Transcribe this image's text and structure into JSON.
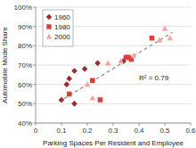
{
  "chart_data": {
    "type": "scatter",
    "x_label": "Parking Spaces Per Resident and Employee",
    "y_label": "Automobile Mode Share",
    "xlim": [
      0,
      0.6
    ],
    "xticks": [
      0,
      0.1,
      0.2,
      0.3,
      0.4,
      0.5,
      0.6
    ],
    "ylim": [
      40,
      100
    ],
    "yticks": [
      {
        "value": 40,
        "label": "40%"
      },
      {
        "value": 50,
        "label": "50%"
      },
      {
        "value": 60,
        "label": "60%"
      },
      {
        "value": 70,
        "label": "70%"
      },
      {
        "value": 80,
        "label": "80%"
      },
      {
        "value": 90,
        "label": "90%"
      },
      {
        "value": 100,
        "label": "100%"
      }
    ],
    "grid": true,
    "legend": "upper left",
    "series": [
      {
        "name": "1960",
        "color": "#9e2a2b",
        "marker": "diamond",
        "x": [
          0.1,
          0.12,
          0.13,
          0.15,
          0.19,
          0.15,
          0.24,
          0.34
        ],
        "values": [
          52,
          60,
          63,
          67,
          68,
          50,
          71,
          72
        ]
      },
      {
        "name": "1980",
        "color": "#d9413a",
        "marker": "square",
        "x": [
          0.22,
          0.25,
          0.35,
          0.36,
          0.37,
          0.45,
          0.13
        ],
        "values": [
          62,
          52,
          74,
          74,
          73,
          84,
          55
        ]
      },
      {
        "name": "2000",
        "color": "#f2a3a0",
        "marker": "triangle",
        "x": [
          0.22,
          0.2,
          0.28,
          0.33,
          0.48,
          0.5,
          0.52,
          0.38
        ],
        "values": [
          53,
          60,
          71,
          72,
          83,
          89,
          84,
          75
        ]
      }
    ],
    "trendline": {
      "x": [
        0.09,
        0.53
      ],
      "values": [
        51,
        87
      ],
      "line_style": "dashed",
      "color": "#8c8c8c"
    },
    "annotation": "R² = 0.79"
  }
}
